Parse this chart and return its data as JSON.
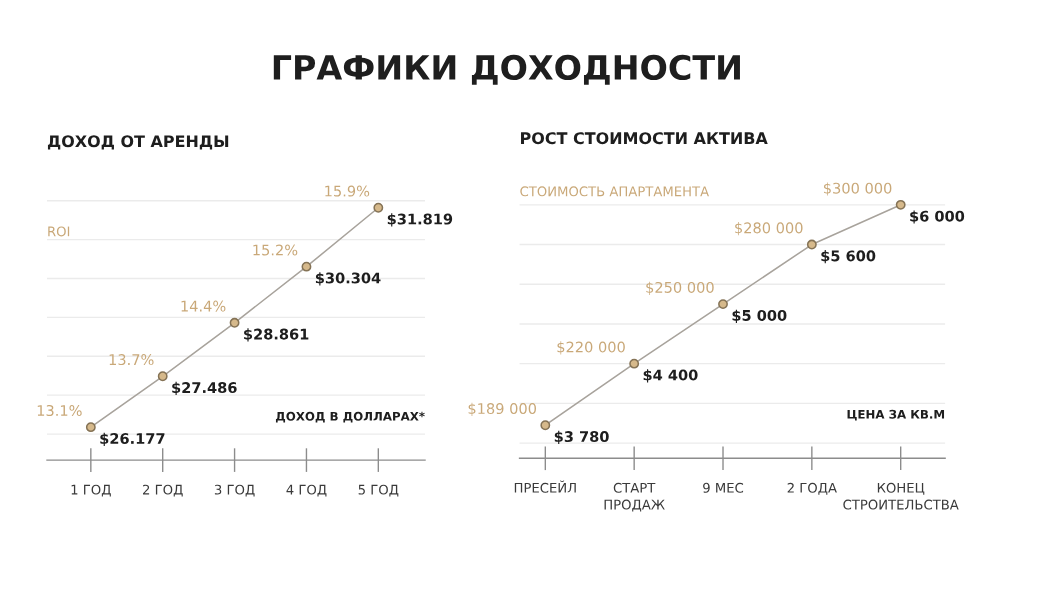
{
  "chart_data": [
    {
      "type": "other",
      "title": "ГРАФИКИ ДОХОДНОСТИ"
    },
    {
      "type": "line",
      "title": "ДОХОД ОТ АРЕНДЫ",
      "categories": [
        "1 ГОД",
        "2 ГОД",
        "3 ГОД",
        "4 ГОД",
        "5 ГОД"
      ],
      "series": [
        {
          "color": "#a8a39c",
          "colors": [
            "#d6b98b",
            "#d6b98b",
            "#d6b98b",
            "#d6b98b",
            "#d6b98b"
          ],
          "values": [
            26.177,
            27.486,
            28.861,
            30.304,
            31.819
          ],
          "value_labels": [
            "$26.177",
            "$27.486",
            "$28.861",
            "$30.304",
            "$31.819"
          ]
        }
      ],
      "marker": "circle",
      "line_style": "solid",
      "grid": "y",
      "tick_labels": "x",
      "annotations": [
        "ROI",
        {
          "text": "13.1%",
          "x": "1 ГОД",
          "y": 26.177
        },
        {
          "text": "13.7%",
          "x": "2 ГОД",
          "y": 27.486
        },
        {
          "text": "14.4%",
          "x": "3 ГОД",
          "y": 28.861
        },
        {
          "text": "15.2%",
          "x": "4 ГОД",
          "y": 30.304
        },
        {
          "text": "15.9%",
          "x": "5 ГОД",
          "y": 31.819
        },
        "ДОХОД В ДОЛЛАРАХ*"
      ]
    },
    {
      "type": "line",
      "title": "РОСТ СТОИМОСТИ АКТИВА",
      "categories": [
        "ПРЕСЕЙЛ",
        "СТАРТ\nПРОДАЖ",
        "9 МЕС",
        "2 ГОДА",
        "КОНЕЦ\nСТРОИТЕЛЬСТВА"
      ],
      "series": [
        {
          "color": "#a8a39c",
          "colors": [
            "#d6b98b",
            "#d6b98b",
            "#d6b98b",
            "#d6b98b",
            "#d6b98b"
          ],
          "values": [
            3780,
            4400,
            5000,
            5600,
            6000
          ],
          "value_labels": [
            "$3 780",
            "$4 400",
            "$5 000",
            "$5 600",
            "$6 000"
          ]
        }
      ],
      "marker": "circle",
      "line_style": "solid",
      "grid": "y",
      "tick_labels": "x",
      "annotations": [
        "СТОИМОСТЬ АПАРТАМЕНТА",
        {
          "text": "$189 000",
          "x": "ПРЕСЕЙЛ",
          "y": 3780
        },
        {
          "text": "$220 000",
          "x": "СТАРТ\nПРОДАЖ",
          "y": 4400
        },
        {
          "text": "$250 000",
          "x": "9 МЕС",
          "y": 5000
        },
        {
          "text": "$280 000",
          "x": "2 ГОДА",
          "y": 5600
        },
        {
          "text": "$300 000",
          "x": "КОНЕЦ\nСТРОИТЕЛЬСТВА",
          "y": 6000
        },
        "ЦЕНА ЗА КВ.М"
      ]
    }
  ]
}
